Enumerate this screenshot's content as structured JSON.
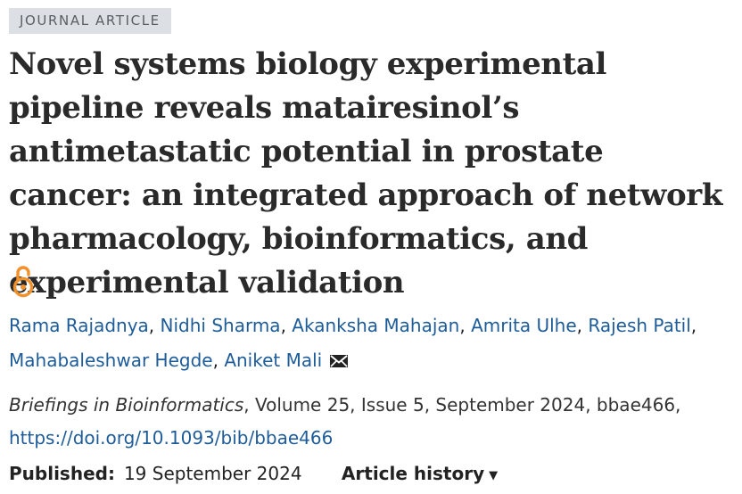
{
  "article": {
    "type_label": "JOURNAL ARTICLE",
    "title": "Novel systems biology experimental pipeline reveals matairesinol’s antimetastatic potential in prostate cancer: an integrated approach of network pharmacology, bioinformatics, and experimental validation",
    "open_access_icon": "open-access-lock-icon"
  },
  "authors": {
    "list": [
      "Rama Rajadnya",
      "Nidhi Sharma",
      "Akanksha Mahajan",
      "Amrita Ulhe",
      "Rajesh Patil",
      "Mahabaleshwar Hegde",
      "Aniket Mali"
    ],
    "separator": ", ",
    "contact_icon": "envelope-icon"
  },
  "citation": {
    "journal": "Briefings in Bioinformatics",
    "details": ", Volume 25, Issue 5, September 2024, bbae466,",
    "doi_url": "https://doi.org/10.1093/bib/bbae466"
  },
  "publication": {
    "published_label": "Published:",
    "published_date": "19 September 2024",
    "history_label": "Article history",
    "history_caret": "▼"
  },
  "colors": {
    "link": "#1e5c99",
    "open_access": "#f2902a",
    "badge_bg": "#dcdfe3"
  }
}
